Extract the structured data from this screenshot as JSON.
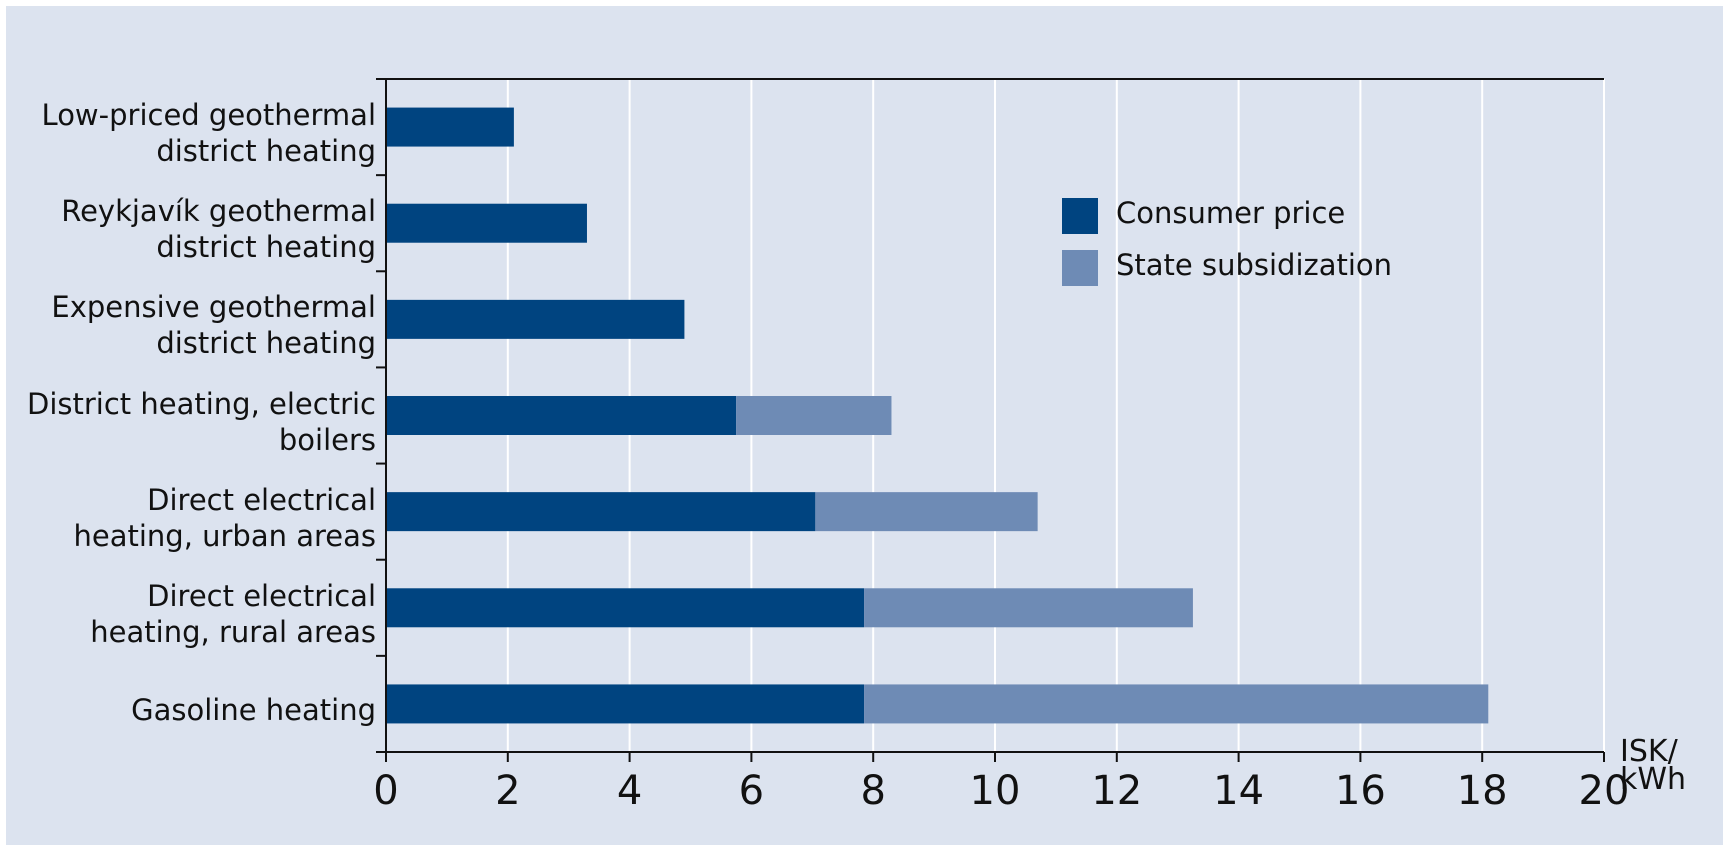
{
  "chart_data": {
    "type": "stacked-bar-horizontal",
    "categories": [
      "Low-priced geothermal district heating",
      "Reykjavík geothermal district heating",
      "Expensive geothermal district heating",
      "District heating, electric boilers",
      "Direct electrical heating, urban areas",
      "Direct electrical heating, rural areas",
      "Gasoline heating"
    ],
    "series": [
      {
        "name": "Consumer price",
        "color": "#004480",
        "values": [
          2.1,
          3.3,
          4.9,
          5.75,
          7.05,
          7.85,
          7.85
        ]
      },
      {
        "name": "State subsidization",
        "color": "#6e8bb5",
        "values": [
          null,
          null,
          null,
          2.55,
          3.65,
          5.4,
          10.25
        ]
      }
    ],
    "x_label": "ISK/ kWh",
    "xlim": [
      0,
      20
    ],
    "xticks": [
      0,
      2,
      4,
      6,
      8,
      10,
      12,
      14,
      16,
      18,
      20
    ],
    "grid": true
  }
}
